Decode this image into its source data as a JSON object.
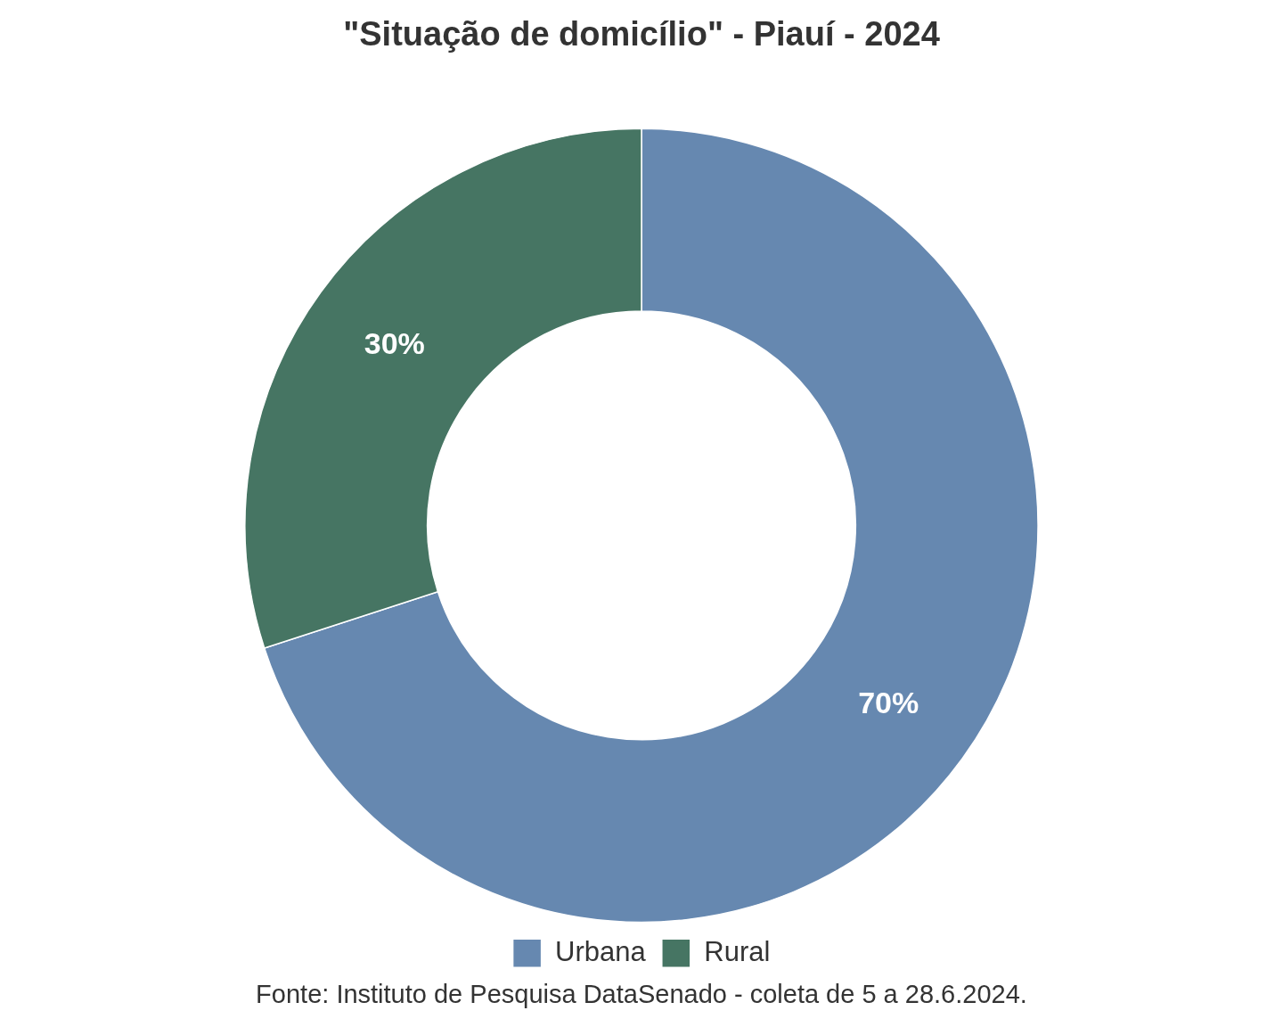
{
  "chart_data": {
    "type": "donut",
    "title": "\"Situação de domicílio\" - Piauí - 2024",
    "categories": [
      "Urbana",
      "Rural"
    ],
    "values": [
      70,
      30
    ],
    "colors": [
      "#6688b0",
      "#467563"
    ],
    "value_labels": [
      "70%",
      "30%"
    ],
    "legend": "bottom",
    "annotations": [
      "Fonte: Instituto de Pesquisa DataSenado - coleta de 5 a 28.6.2024."
    ]
  }
}
